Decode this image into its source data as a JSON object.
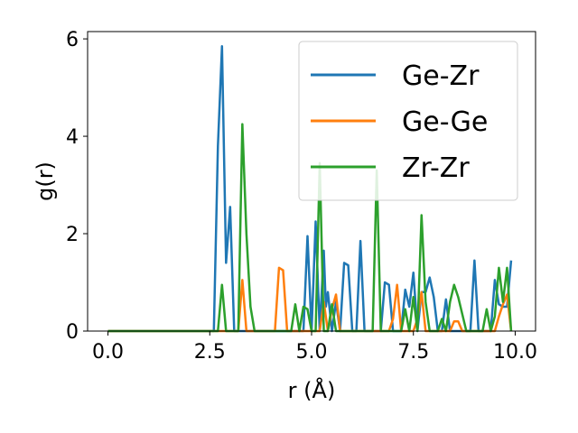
{
  "chart_data": {
    "type": "line",
    "xlabel": "r (Å)",
    "ylabel": "g(r)",
    "xlim": [
      -0.5,
      10.5
    ],
    "ylim": [
      0,
      6.15
    ],
    "xticks": [
      0,
      2.5,
      5,
      7.5,
      10
    ],
    "xtick_labels": [
      "0.0",
      "2.5",
      "5.0",
      "7.5",
      "10.0"
    ],
    "yticks": [
      0,
      2,
      4,
      6
    ],
    "ytick_labels": [
      "0",
      "2",
      "4",
      "6"
    ],
    "grid": false,
    "legend_position": "top-right",
    "series": [
      {
        "name": "Ge-Zr",
        "color": "#1f77b4",
        "x": [
          0.0,
          2.6,
          2.7,
          2.8,
          2.9,
          3.0,
          3.1,
          3.2,
          4.8,
          4.9,
          5.0,
          5.1,
          5.2,
          5.3,
          5.35,
          5.4,
          5.5,
          5.6,
          5.7,
          5.8,
          5.9,
          6.0,
          6.1,
          6.2,
          6.3,
          6.4,
          6.5,
          6.6,
          6.7,
          6.8,
          6.9,
          7.0,
          7.1,
          7.2,
          7.3,
          7.4,
          7.5,
          7.6,
          7.7,
          7.8,
          7.9,
          8.0,
          8.1,
          8.2,
          8.3,
          8.4,
          8.5,
          8.6,
          8.7,
          8.8,
          8.9,
          9.0,
          9.1,
          9.2,
          9.3,
          9.4,
          9.5,
          9.6,
          9.7,
          9.8,
          9.9
        ],
        "y": [
          0.0,
          0.0,
          3.8,
          5.85,
          1.4,
          2.55,
          0.0,
          0.0,
          0.0,
          1.95,
          0.0,
          2.25,
          0.0,
          1.65,
          0.5,
          0.8,
          0.0,
          0.6,
          0.0,
          1.4,
          1.35,
          0.0,
          0.0,
          1.85,
          0.0,
          0.0,
          0.0,
          0.0,
          0.0,
          1.0,
          0.95,
          0.0,
          0.0,
          0.0,
          0.85,
          0.5,
          1.2,
          0.0,
          0.8,
          0.8,
          1.1,
          0.7,
          0.0,
          0.0,
          0.65,
          0.0,
          0.0,
          0.0,
          0.0,
          0.0,
          0.0,
          1.45,
          0.0,
          0.0,
          0.0,
          0.0,
          1.05,
          0.55,
          0.5,
          0.5,
          1.45
        ]
      },
      {
        "name": "Ge-Ge",
        "color": "#ff7f0e",
        "x": [
          0.0,
          3.2,
          3.3,
          3.4,
          4.1,
          4.2,
          4.3,
          4.4,
          5.2,
          5.3,
          5.4,
          5.5,
          5.6,
          5.7,
          5.8,
          6.9,
          7.0,
          7.1,
          7.2,
          7.5,
          7.6,
          7.7,
          7.8,
          8.4,
          8.5,
          8.6,
          8.7,
          9.5,
          9.6,
          9.7,
          9.8,
          9.9
        ],
        "y": [
          0.0,
          0.0,
          1.05,
          0.0,
          0.0,
          1.3,
          1.25,
          0.0,
          0.0,
          0.6,
          0.0,
          0.45,
          0.75,
          0.0,
          0.0,
          0.0,
          0.25,
          0.95,
          0.0,
          0.0,
          0.25,
          0.8,
          0.0,
          0.0,
          0.2,
          0.2,
          0.0,
          0.0,
          0.3,
          0.55,
          0.75,
          0.0
        ]
      },
      {
        "name": "Zr-Zr",
        "color": "#2ca02c",
        "x": [
          0.0,
          2.5,
          2.6,
          2.7,
          2.8,
          2.9,
          3.0,
          3.1,
          3.2,
          3.3,
          3.4,
          3.5,
          3.6,
          3.7,
          4.5,
          4.6,
          4.7,
          4.8,
          4.9,
          5.0,
          5.1,
          5.2,
          5.3,
          5.4,
          5.5,
          5.6,
          5.7,
          6.5,
          6.6,
          6.7,
          6.8,
          7.0,
          7.1,
          7.2,
          7.3,
          7.4,
          7.5,
          7.6,
          7.7,
          7.8,
          7.9,
          8.0,
          8.1,
          8.2,
          8.3,
          8.4,
          8.5,
          8.6,
          8.7,
          8.8,
          8.9,
          9.0,
          9.1,
          9.2,
          9.3,
          9.4,
          9.5,
          9.6,
          9.7,
          9.8,
          9.9
        ],
        "y": [
          0.0,
          0.0,
          0.0,
          0.0,
          0.95,
          0.0,
          0.0,
          0.0,
          0.0,
          4.25,
          2.0,
          0.5,
          0.0,
          0.0,
          0.0,
          0.55,
          0.0,
          0.5,
          0.45,
          0.0,
          0.0,
          3.45,
          0.0,
          0.0,
          0.55,
          0.0,
          0.0,
          0.0,
          3.3,
          0.0,
          0.0,
          0.0,
          0.0,
          0.0,
          0.45,
          0.0,
          0.7,
          0.0,
          2.38,
          0.6,
          0.0,
          0.0,
          0.0,
          0.25,
          0.0,
          0.6,
          0.95,
          0.7,
          0.35,
          0.0,
          0.0,
          0.0,
          0.0,
          0.0,
          0.45,
          0.0,
          0.3,
          1.3,
          0.6,
          1.3,
          0.0
        ]
      }
    ]
  }
}
